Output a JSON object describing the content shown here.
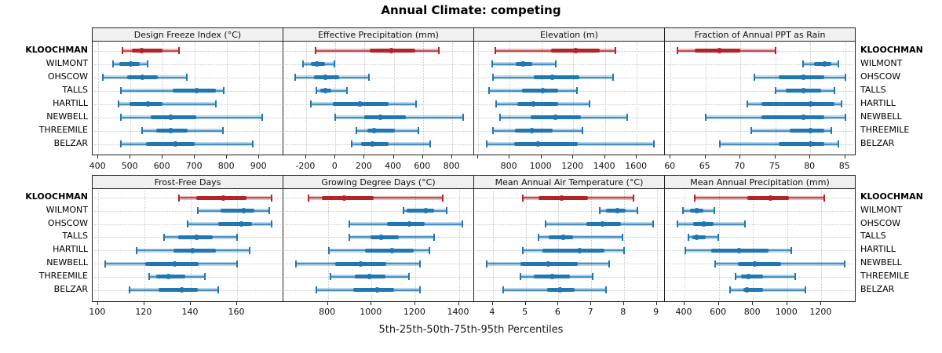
{
  "chart_data": {
    "type": "trellis-percentile-dotplot",
    "title": "Annual Climate: competing",
    "caption": "5th-25th-50th-75th-95th Percentiles",
    "percentiles_shown": [
      5,
      25,
      50,
      75,
      95
    ],
    "stations": [
      "KLOOCHMAN",
      "WILMONT",
      "OHSCOW",
      "TALLS",
      "HARTILL",
      "NEWBELL",
      "THREEMILE",
      "BELZAR"
    ],
    "highlight_station": "KLOOCHMAN",
    "grid": "dotted",
    "legend_position": "none",
    "colors": {
      "highlight": "#b22427",
      "highlight_mid": "rgba(178,36,39,0.70)",
      "highlight_faded": "rgba(178,36,39,0.30)",
      "series": "#1f77b4",
      "series_mid": "rgba(31,119,180,0.70)",
      "series_faded": "rgba(31,119,180,0.30)",
      "strip_bg": "#f0f0f0",
      "panel_border": "#222222",
      "grid": "#c9c9c9",
      "text": "#111111"
    },
    "panels": [
      {
        "title": "Design Freeze Index (°C)",
        "xlim": [
          385,
          975
        ],
        "ticks": [
          400,
          500,
          600,
          700,
          800,
          900
        ],
        "tick_labels": [
          "400",
          "500",
          "600",
          "700",
          "800",
          "900"
        ],
        "values": [
          [
            475,
            505,
            535,
            600,
            650
          ],
          [
            447,
            465,
            500,
            530,
            552
          ],
          [
            415,
            490,
            538,
            585,
            675
          ],
          [
            470,
            630,
            705,
            765,
            790
          ],
          [
            463,
            497,
            555,
            600,
            765
          ],
          [
            469,
            564,
            625,
            704,
            908
          ],
          [
            535,
            580,
            625,
            677,
            787
          ],
          [
            470,
            548,
            640,
            700,
            880
          ]
        ]
      },
      {
        "title": "Effective Precipitation (mm)",
        "xlim": [
          -350,
          950
        ],
        "ticks": [
          -200,
          0,
          200,
          400,
          600,
          800
        ],
        "tick_labels": [
          "-200",
          "0",
          "200",
          "400",
          "600",
          "800"
        ],
        "values": [
          [
            -135,
            235,
            385,
            545,
            710
          ],
          [
            -220,
            -168,
            -128,
            -70,
            -5
          ],
          [
            -275,
            -145,
            -70,
            25,
            230
          ],
          [
            -130,
            -105,
            -70,
            -25,
            80
          ],
          [
            -165,
            -15,
            170,
            365,
            550
          ],
          [
            0,
            195,
            310,
            480,
            875
          ],
          [
            145,
            220,
            265,
            410,
            570
          ],
          [
            110,
            175,
            255,
            365,
            650
          ]
        ]
      },
      {
        "title": "Elevation (m)",
        "xlim": [
          582,
          1777
        ],
        "ticks": [
          600,
          800,
          1000,
          1200,
          1400,
          1600
        ],
        "tick_labels": [
          "",
          "800",
          "1000",
          "1200",
          "1400",
          "1600"
        ],
        "values": [
          [
            710,
            1060,
            1215,
            1365,
            1465
          ],
          [
            690,
            840,
            885,
            945,
            1090
          ],
          [
            695,
            950,
            1070,
            1240,
            1450
          ],
          [
            670,
            880,
            1010,
            1105,
            1225
          ],
          [
            715,
            850,
            950,
            1105,
            1305
          ],
          [
            740,
            930,
            1090,
            1250,
            1540
          ],
          [
            695,
            835,
            940,
            1070,
            1260
          ],
          [
            655,
            830,
            980,
            1230,
            1710
          ]
        ]
      },
      {
        "title": "Fraction of Annual PPT as Rain",
        "xlim": [
          59.3,
          86.5
        ],
        "ticks": [
          60,
          65,
          70,
          75,
          80,
          85
        ],
        "tick_labels": [
          "60",
          "65",
          "70",
          "75",
          "80",
          "85"
        ],
        "values": [
          [
            61,
            63.5,
            67,
            70,
            75
          ],
          [
            79,
            80.5,
            82,
            83,
            84
          ],
          [
            72,
            75.5,
            79,
            82,
            85
          ],
          [
            75,
            76.5,
            79,
            81.5,
            83.5
          ],
          [
            71,
            73,
            80,
            83.5,
            84.5
          ],
          [
            65,
            73,
            79,
            82,
            85
          ],
          [
            71.5,
            77,
            80,
            82,
            83
          ],
          [
            67,
            75.5,
            80,
            82,
            84
          ]
        ]
      },
      {
        "title": "Frost-Free Days",
        "xlim": [
          98,
          180
        ],
        "ticks": [
          100,
          120,
          140,
          160
        ],
        "tick_labels": [
          "100",
          "120",
          "140",
          "160"
        ],
        "values": [
          [
            135,
            142.5,
            154,
            164,
            175
          ],
          [
            143,
            153,
            163,
            167.5,
            174
          ],
          [
            138.5,
            152,
            162,
            166.5,
            175
          ],
          [
            128.5,
            134.5,
            142.5,
            149.5,
            160
          ],
          [
            116.5,
            132.5,
            141,
            151,
            165.5
          ],
          [
            103,
            120.5,
            133,
            143.5,
            160
          ],
          [
            122,
            125,
            130.5,
            137.5,
            146
          ],
          [
            113.5,
            126,
            136,
            143,
            152
          ]
        ]
      },
      {
        "title": "Growing Degree Days (°C)",
        "xlim": [
          600,
          1470
        ],
        "ticks": [
          800,
          1000,
          1200,
          1400
        ],
        "tick_labels": [
          "800",
          "1000",
          "1200",
          "1400"
        ],
        "values": [
          [
            712,
            774,
            875,
            1009,
            1325
          ],
          [
            1145,
            1160,
            1250,
            1285,
            1345
          ],
          [
            900,
            1070,
            1175,
            1245,
            1415
          ],
          [
            900,
            995,
            1045,
            1125,
            1285
          ],
          [
            805,
            970,
            1095,
            1195,
            1265
          ],
          [
            653,
            835,
            950,
            1068,
            1222
          ],
          [
            812,
            922,
            990,
            1064,
            1172
          ],
          [
            747,
            915,
            1025,
            1105,
            1220
          ]
        ]
      },
      {
        "title": "Mean Annual Air Temperature (°C)",
        "xlim": [
          3.45,
          9.25
        ],
        "ticks": [
          4,
          5,
          6,
          7,
          8,
          9
        ],
        "tick_labels": [
          "4",
          "5",
          "6",
          "7",
          "8",
          "9"
        ],
        "values": [
          [
            4.9,
            5.4,
            6.1,
            6.9,
            8.3
          ],
          [
            7.25,
            7.45,
            7.8,
            8.05,
            8.4
          ],
          [
            5.6,
            6.85,
            7.35,
            7.9,
            8.9
          ],
          [
            5.4,
            5.7,
            6.15,
            6.45,
            7.95
          ],
          [
            4.9,
            5.5,
            6.65,
            7.4,
            8.0
          ],
          [
            3.8,
            4.85,
            5.7,
            6.6,
            7.55
          ],
          [
            4.85,
            5.25,
            5.8,
            6.35,
            7.05
          ],
          [
            4.3,
            5.65,
            6.05,
            6.5,
            7.45
          ]
        ]
      },
      {
        "title": "Mean Annual Precipitation (mm)",
        "xlim": [
          290,
          1400
        ],
        "ticks": [
          400,
          600,
          800,
          1000,
          1200
        ],
        "tick_labels": [
          "400",
          "600",
          "800",
          "1000",
          "1200"
        ],
        "values": [
          [
            460,
            765,
            900,
            1010,
            1215
          ],
          [
            390,
            430,
            470,
            510,
            575
          ],
          [
            360,
            450,
            510,
            570,
            755
          ],
          [
            425,
            445,
            470,
            525,
            595
          ],
          [
            405,
            555,
            720,
            890,
            1025
          ],
          [
            580,
            710,
            810,
            965,
            1335
          ],
          [
            700,
            730,
            775,
            860,
            1045
          ],
          [
            665,
            745,
            765,
            860,
            1105
          ]
        ]
      }
    ]
  }
}
